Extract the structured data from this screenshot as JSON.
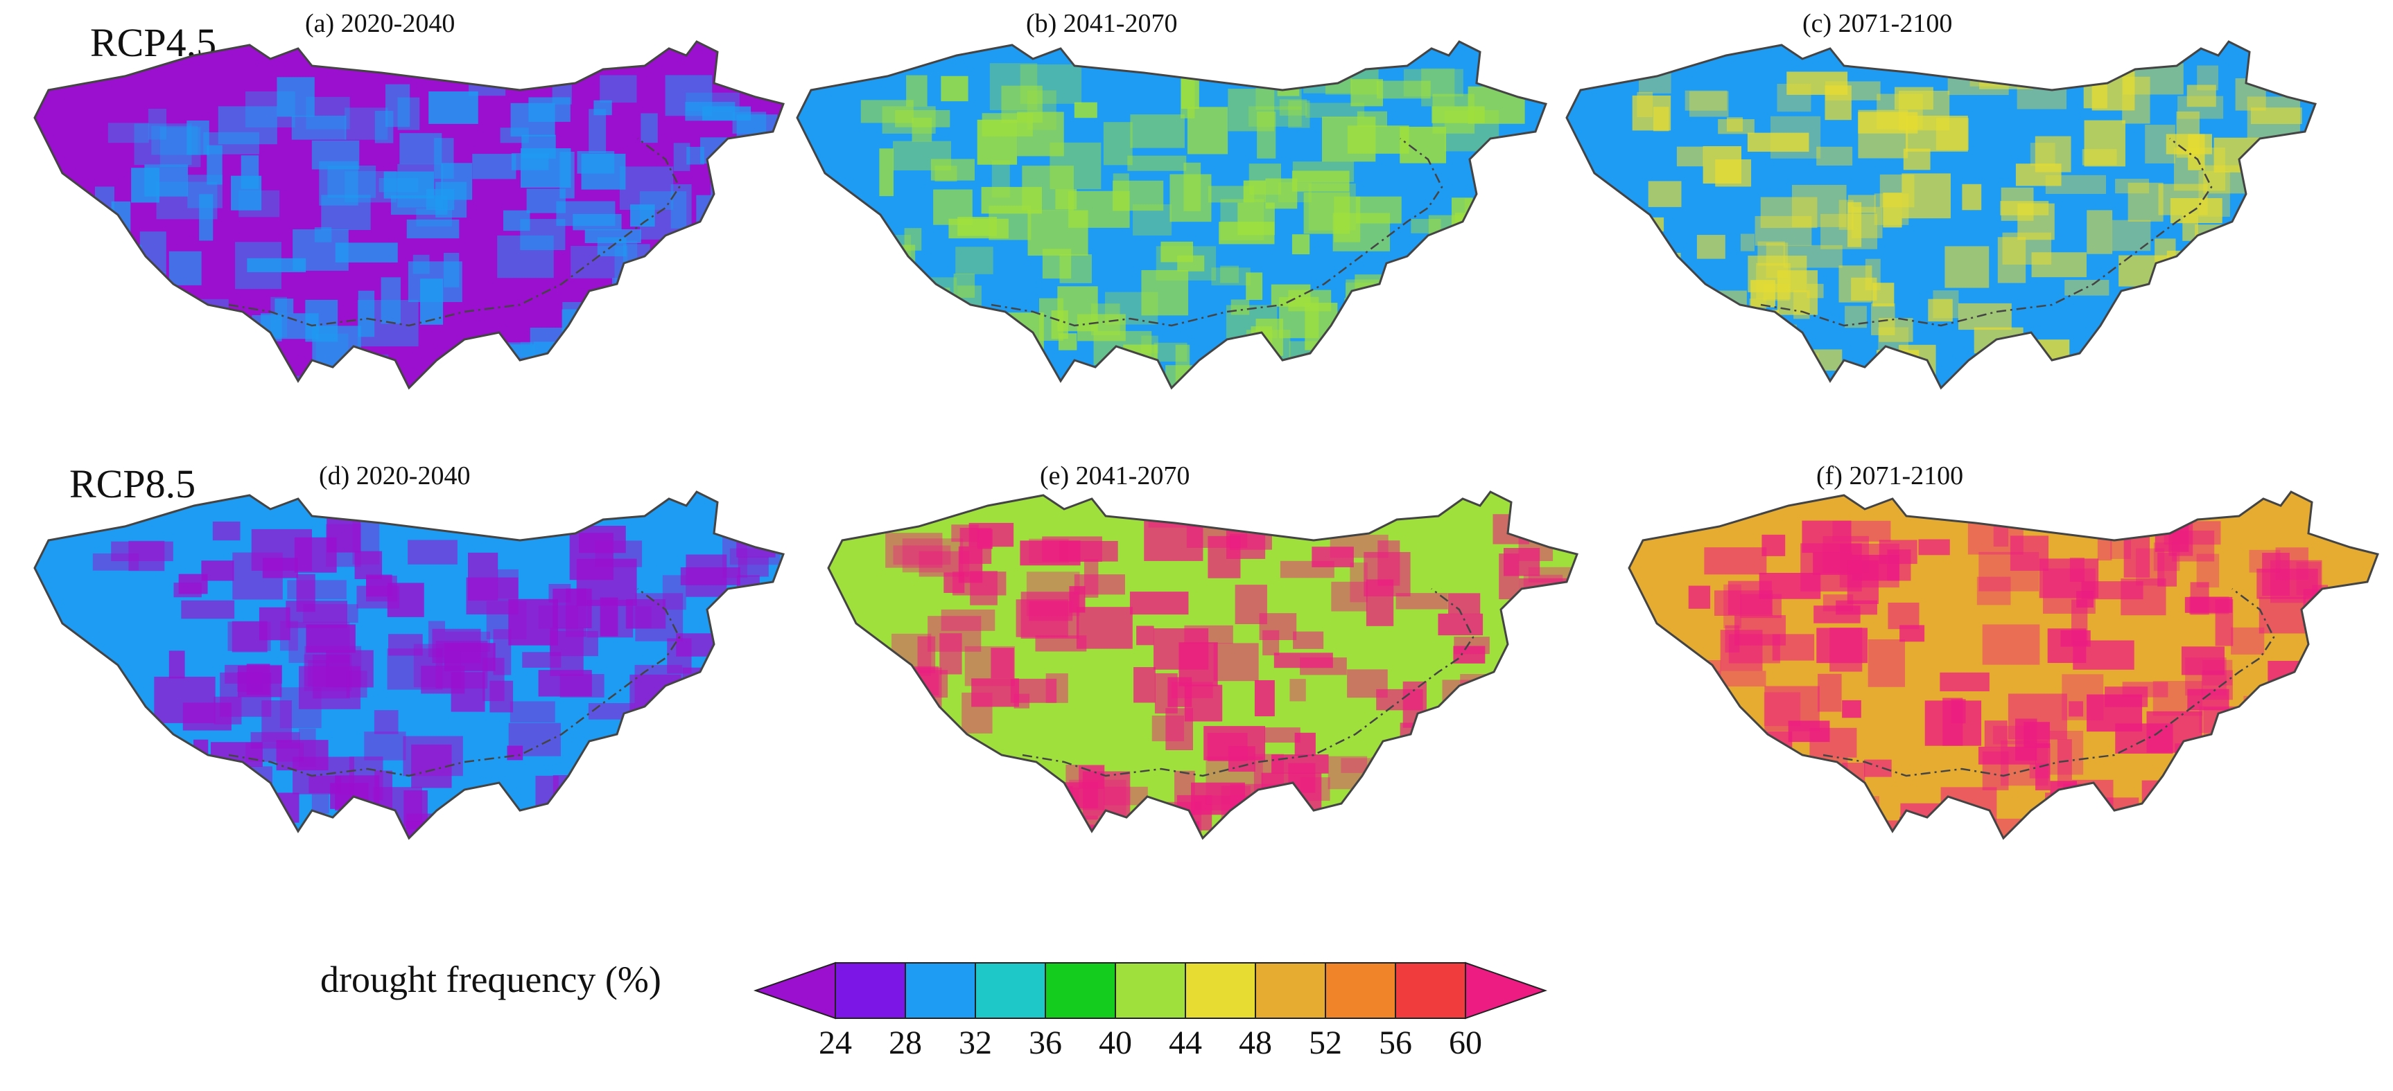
{
  "scenarios": [
    {
      "label": "RCP4.5"
    },
    {
      "label": "RCP8.5"
    }
  ],
  "panels": [
    {
      "title": "(a) 2020-2040"
    },
    {
      "title": "(b) 2041-2070"
    },
    {
      "title": "(c) 2071-2100"
    },
    {
      "title": "(d) 2020-2040"
    },
    {
      "title": "(e) 2041-2070"
    },
    {
      "title": "(f) 2071-2100"
    }
  ],
  "colorbar": {
    "label": "drought frequency (%)",
    "ticks": [
      "24",
      "28",
      "32",
      "36",
      "40",
      "44",
      "48",
      "52",
      "56",
      "60"
    ],
    "colors": [
      "#9b0fcf",
      "#7b16e6",
      "#1e9bf2",
      "#1ec8c8",
      "#14cc1e",
      "#a0e03c",
      "#e6dc32",
      "#e6ac32",
      "#f08428",
      "#f03c3c",
      "#ec1c82"
    ]
  },
  "map_styles": [
    {
      "base": "#9b0fcf",
      "accent": "#1e9bf2"
    },
    {
      "base": "#1e9bf2",
      "accent": "#a0e03c"
    },
    {
      "base": "#1e9bf2",
      "accent": "#e6dc32"
    },
    {
      "base": "#1e9bf2",
      "accent": "#9b0fcf"
    },
    {
      "base": "#a0e03c",
      "accent": "#ec1c82"
    },
    {
      "base": "#e6ac32",
      "accent": "#ec1c82"
    }
  ]
}
